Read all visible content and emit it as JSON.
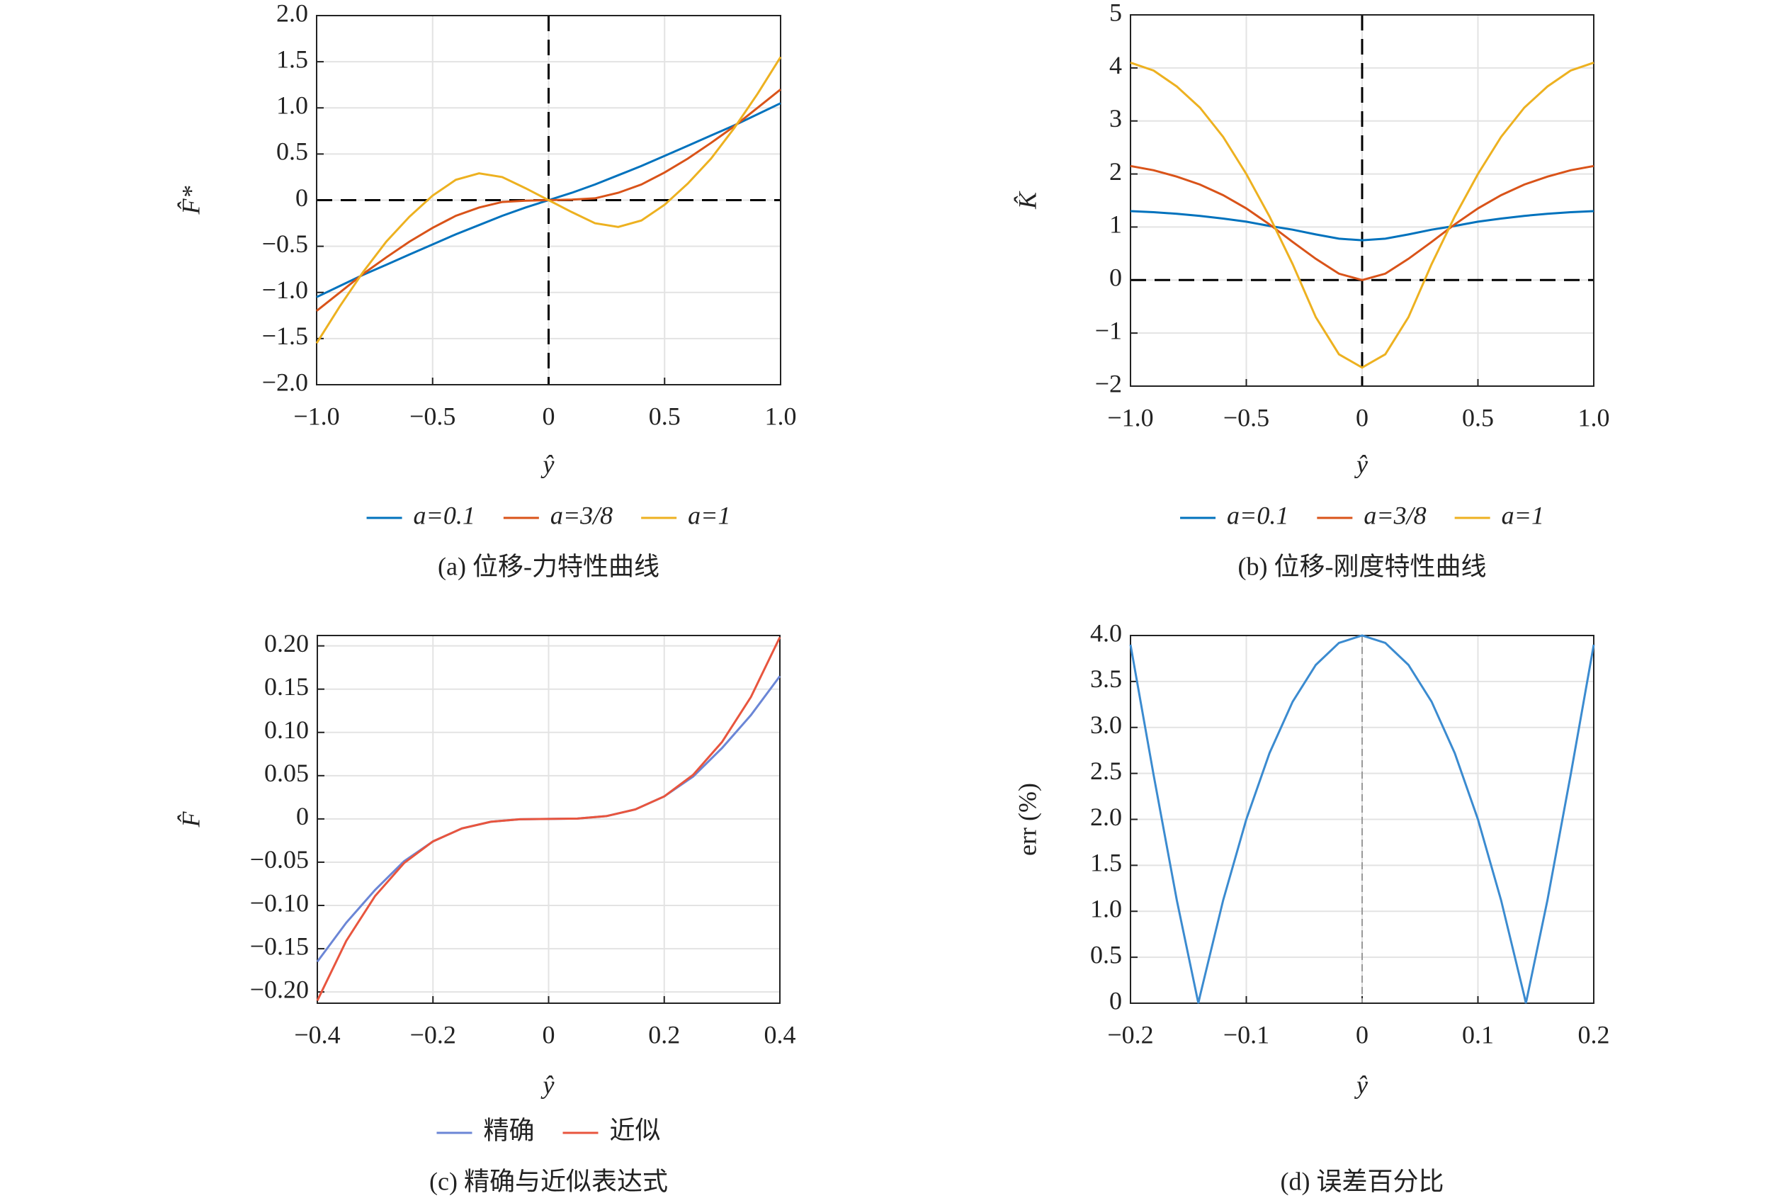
{
  "chart_data": [
    {
      "type": "line",
      "caption": "(a) 位移-力特性曲线",
      "x_label": "ŷ",
      "y_label": "F̂*",
      "x": [
        -1,
        -0.9,
        -0.8,
        -0.7,
        -0.6,
        -0.5,
        -0.4,
        -0.3,
        -0.2,
        -0.1,
        0,
        0.1,
        0.2,
        0.3,
        0.4,
        0.5,
        0.6,
        0.7,
        0.8,
        0.9,
        1
      ],
      "series": [
        {
          "name": "a=0.1",
          "color": "#0072bd",
          "values": [
            -1.05,
            -0.93,
            -0.81,
            -0.7,
            -0.59,
            -0.48,
            -0.37,
            -0.27,
            -0.17,
            -0.08,
            0,
            0.08,
            0.17,
            0.27,
            0.37,
            0.48,
            0.59,
            0.7,
            0.81,
            0.93,
            1.05
          ]
        },
        {
          "name": "a=3/8",
          "color": "#d95319",
          "values": [
            -1.2,
            -1.0,
            -0.8,
            -0.62,
            -0.45,
            -0.3,
            -0.17,
            -0.08,
            -0.02,
            -0.005,
            0,
            0.005,
            0.02,
            0.08,
            0.17,
            0.3,
            0.45,
            0.62,
            0.8,
            1.0,
            1.2
          ]
        },
        {
          "name": "a=1",
          "color": "#edb120",
          "values": [
            -1.55,
            -1.15,
            -0.78,
            -0.45,
            -0.18,
            0.05,
            0.22,
            0.29,
            0.25,
            0.13,
            0,
            -0.13,
            -0.25,
            -0.29,
            -0.22,
            -0.05,
            0.18,
            0.45,
            0.78,
            1.15,
            1.55
          ]
        }
      ],
      "xlim": [
        -1,
        1
      ],
      "ylim": [
        -2,
        2
      ],
      "xticks": [
        {
          "value": -1,
          "label": "−1.0"
        },
        {
          "value": -0.5,
          "label": "−0.5"
        },
        0,
        0.5,
        {
          "value": 1,
          "label": "1.0"
        }
      ],
      "yticks": [
        {
          "value": 2,
          "label": "2.0"
        },
        1.5,
        {
          "value": 1,
          "label": "1.0"
        },
        0.5,
        0,
        {
          "value": -0.5,
          "label": "−0.5"
        },
        {
          "value": -1,
          "label": "−1.0"
        },
        {
          "value": -1.5,
          "label": "−1.5"
        },
        {
          "value": -2,
          "label": "−2.0"
        }
      ],
      "grid": true,
      "reference_lines": "both",
      "legend": "bottom"
    },
    {
      "type": "line",
      "caption": "(b) 位移-刚度特性曲线",
      "x_label": "ŷ",
      "y_label": "K̂",
      "x": [
        -1,
        -0.9,
        -0.8,
        -0.7,
        -0.6,
        -0.5,
        -0.4,
        -0.3,
        -0.2,
        -0.1,
        0,
        0.1,
        0.2,
        0.3,
        0.4,
        0.5,
        0.6,
        0.7,
        0.8,
        0.9,
        1
      ],
      "series": [
        {
          "name": "a=0.1",
          "color": "#0072bd",
          "values": [
            1.3,
            1.28,
            1.25,
            1.21,
            1.16,
            1.1,
            1.02,
            0.95,
            0.86,
            0.78,
            0.75,
            0.78,
            0.86,
            0.95,
            1.02,
            1.1,
            1.16,
            1.21,
            1.25,
            1.28,
            1.3
          ]
        },
        {
          "name": "a=3/8",
          "color": "#d95319",
          "values": [
            2.15,
            2.07,
            1.95,
            1.8,
            1.6,
            1.35,
            1.05,
            0.72,
            0.4,
            0.12,
            0,
            0.12,
            0.4,
            0.72,
            1.05,
            1.35,
            1.6,
            1.8,
            1.95,
            2.07,
            2.15
          ]
        },
        {
          "name": "a=1",
          "color": "#edb120",
          "values": [
            4.1,
            3.95,
            3.65,
            3.25,
            2.7,
            2.0,
            1.2,
            0.3,
            -0.7,
            -1.4,
            -1.65,
            -1.4,
            -0.7,
            0.3,
            1.2,
            2.0,
            2.7,
            3.25,
            3.65,
            3.95,
            4.1
          ]
        }
      ],
      "xlim": [
        -1,
        1
      ],
      "ylim": [
        -2,
        5
      ],
      "xticks": [
        {
          "value": -1,
          "label": "−1.0"
        },
        {
          "value": -0.5,
          "label": "−0.5"
        },
        0,
        0.5,
        {
          "value": 1,
          "label": "1.0"
        }
      ],
      "yticks": [
        5,
        4,
        3,
        2,
        1,
        0,
        {
          "value": -1,
          "label": "−1"
        },
        {
          "value": -2,
          "label": "−2"
        }
      ],
      "grid": true,
      "reference_lines": "both",
      "legend": "bottom"
    },
    {
      "type": "line",
      "caption": "(c) 精确与近似表达式",
      "x_label": "ŷ",
      "y_label": "F̂",
      "x": [
        -0.4,
        -0.35,
        -0.3,
        -0.25,
        -0.2,
        -0.15,
        -0.1,
        -0.05,
        0,
        0.05,
        0.1,
        0.15,
        0.2,
        0.25,
        0.3,
        0.35,
        0.4
      ],
      "series": [
        {
          "name": "精确",
          "color": "#6b86d6",
          "values": [
            -0.165,
            -0.12,
            -0.082,
            -0.049,
            -0.026,
            -0.011,
            -0.0033,
            -0.0004,
            0,
            0.0004,
            0.0033,
            0.011,
            0.026,
            0.049,
            0.082,
            0.12,
            0.165
          ]
        },
        {
          "name": "近似",
          "color": "#e8553e",
          "values": [
            -0.21,
            -0.141,
            -0.089,
            -0.051,
            -0.026,
            -0.011,
            -0.0033,
            -0.0004,
            0,
            0.0004,
            0.0033,
            0.011,
            0.026,
            0.051,
            0.089,
            0.141,
            0.21
          ]
        }
      ],
      "xlim": [
        -0.4,
        0.4
      ],
      "ylim": [
        -0.213,
        0.212
      ],
      "xticks": [
        {
          "value": -0.4,
          "label": "−0.4"
        },
        {
          "value": -0.2,
          "label": "−0.2"
        },
        0,
        0.2,
        0.4
      ],
      "yticks": [
        {
          "value": 0.2,
          "label": "0.20"
        },
        0.15,
        {
          "value": 0.1,
          "label": "0.10"
        },
        0.05,
        0,
        {
          "value": -0.05,
          "label": "−0.05"
        },
        {
          "value": -0.1,
          "label": "−0.10"
        },
        {
          "value": -0.15,
          "label": "−0.15"
        },
        {
          "value": -0.2,
          "label": "−0.20"
        }
      ],
      "grid": true,
      "reference_lines": "none",
      "legend": "bottom"
    },
    {
      "type": "line",
      "caption": "(d) 误差百分比",
      "x_label": "ŷ",
      "y_label": "err (%)",
      "x": [
        -0.2,
        -0.18,
        -0.16,
        -0.1414,
        -0.14,
        -0.12,
        -0.1,
        -0.08,
        -0.06,
        -0.04,
        -0.02,
        0,
        0.02,
        0.04,
        0.06,
        0.08,
        0.1,
        0.12,
        0.14,
        0.1414,
        0.16,
        0.18,
        0.2
      ],
      "series": [
        {
          "color": "#3b8bd0",
          "values": [
            3.9,
            2.48,
            1.12,
            0,
            0.08,
            1.12,
            2.0,
            2.72,
            3.28,
            3.68,
            3.92,
            4,
            3.92,
            3.68,
            3.28,
            2.72,
            2.0,
            1.12,
            0.08,
            0,
            1.12,
            2.48,
            3.9
          ]
        }
      ],
      "xlim": [
        -0.2,
        0.2
      ],
      "ylim": [
        0,
        4
      ],
      "xticks": [
        {
          "value": -0.2,
          "label": "−0.2"
        },
        {
          "value": -0.1,
          "label": "−0.1"
        },
        0,
        0.1,
        0.2
      ],
      "yticks": [
        {
          "value": 4,
          "label": "4.0"
        },
        3.5,
        {
          "value": 3,
          "label": "3.0"
        },
        2.5,
        {
          "value": 2,
          "label": "2.0"
        },
        1.5,
        {
          "value": 1,
          "label": "1.0"
        },
        0.5,
        0
      ],
      "grid": true,
      "reference_lines": "vertical",
      "legend": "none"
    }
  ]
}
